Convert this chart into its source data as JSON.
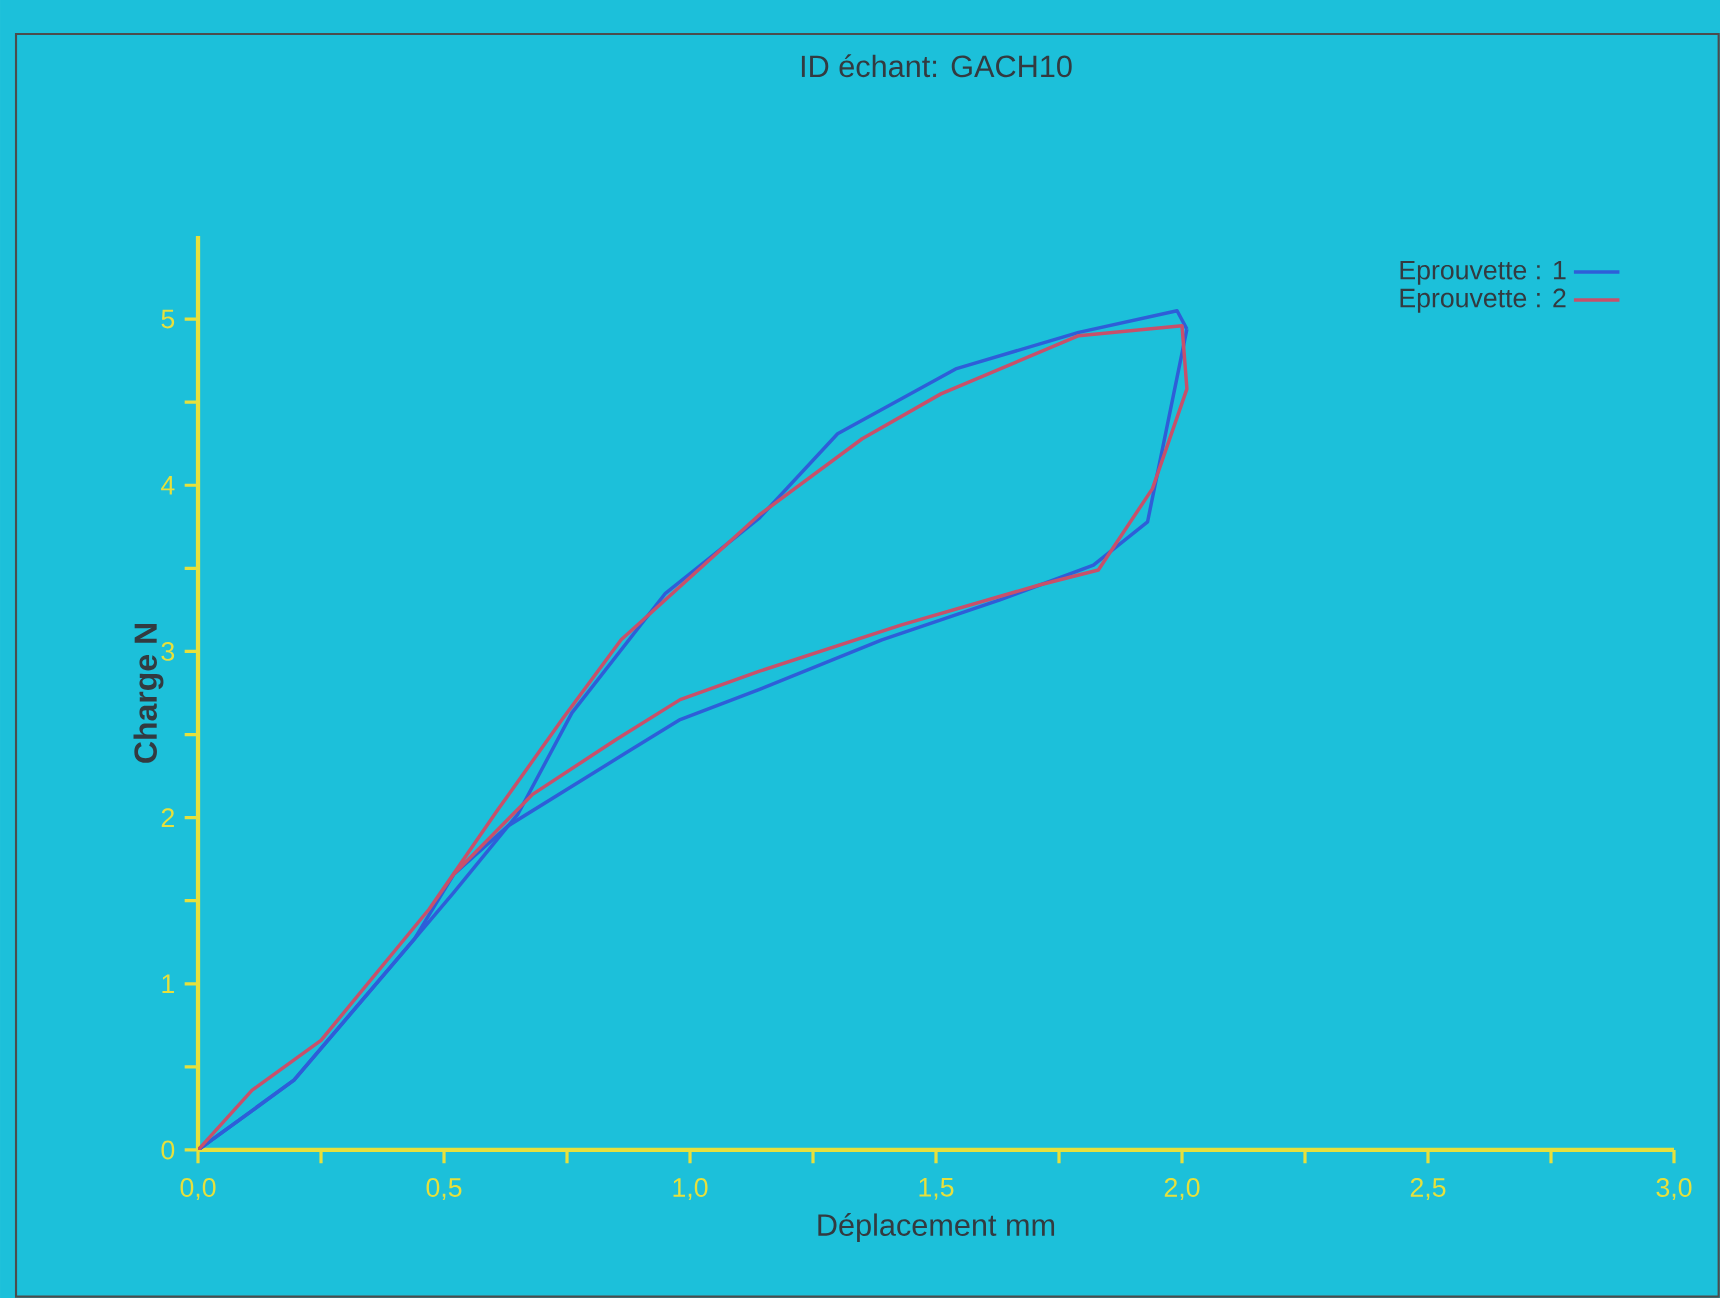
{
  "chart_data": {
    "type": "line",
    "title": "ID échant: GACH10",
    "xlabel": "Déplacement mm",
    "ylabel": "Charge N",
    "xlim": [
      0,
      3
    ],
    "ylim": [
      0,
      5.5
    ],
    "xticks": [
      {
        "value": 0,
        "label": "0,0"
      },
      {
        "value": 0.25,
        "label": null
      },
      {
        "value": 0.5,
        "label": "0,5"
      },
      {
        "value": 0.75,
        "label": null
      },
      {
        "value": 1,
        "label": "1,0"
      },
      {
        "value": 1.25,
        "label": null
      },
      {
        "value": 1.5,
        "label": "1,5"
      },
      {
        "value": 1.75,
        "label": null
      },
      {
        "value": 2,
        "label": "2,0"
      },
      {
        "value": 2.25,
        "label": null
      },
      {
        "value": 2.5,
        "label": "2,5"
      },
      {
        "value": 2.75,
        "label": null
      },
      {
        "value": 3,
        "label": "3,0"
      }
    ],
    "yticks": [
      0,
      {
        "value": 0.5,
        "label": null
      },
      1,
      {
        "value": 1.5,
        "label": null
      },
      2,
      {
        "value": 2.5,
        "label": null
      },
      3,
      {
        "value": 3.5,
        "label": null
      },
      4,
      {
        "value": 4.5,
        "label": null
      },
      5
    ],
    "legend": "top right",
    "marker": "none",
    "line_style": "solid",
    "series": [
      {
        "name": "Eprouvette : 1",
        "color": "#2e5ed8",
        "x": [
          0,
          0.195,
          0.44,
          0.52,
          0.65,
          0.76,
          0.95,
          1.14,
          1.3,
          1.54,
          1.79,
          1.99,
          2.01
        ],
        "values": [
          0,
          0.42,
          1.27,
          1.55,
          2.02,
          2.63,
          3.35,
          3.8,
          4.31,
          4.7,
          4.92,
          5.05,
          4.94
        ]
      },
      {
        "color": "#2e5ed8",
        "x": [
          2.01,
          1.93,
          1.82,
          1.63,
          1.39,
          1.14,
          0.98,
          0.87,
          0.63,
          0.52,
          0.44,
          0.195,
          0
        ],
        "values": [
          4.94,
          3.78,
          3.52,
          3.31,
          3.07,
          2.77,
          2.59,
          2.39,
          1.95,
          1.66,
          1.27,
          0.42,
          0
        ]
      },
      {
        "name": "Eprouvette : 2",
        "color": "#c8506a",
        "x": [
          0,
          0.11,
          0.25,
          0.47,
          0.61,
          0.74,
          0.86,
          1.14,
          1.35,
          1.51,
          1.79,
          2.0,
          2.01,
          1.94,
          1.83,
          1.71,
          1.43,
          1.14,
          0.98,
          0.85,
          0.68,
          0.52,
          0.47
        ],
        "values": [
          0,
          0.36,
          0.66,
          1.45,
          2.05,
          2.59,
          3.07,
          3.82,
          4.28,
          4.55,
          4.9,
          4.96,
          4.58,
          3.98,
          3.49,
          3.4,
          3.16,
          2.88,
          2.71,
          2.47,
          2.14,
          1.66,
          1.45
        ]
      }
    ]
  }
}
